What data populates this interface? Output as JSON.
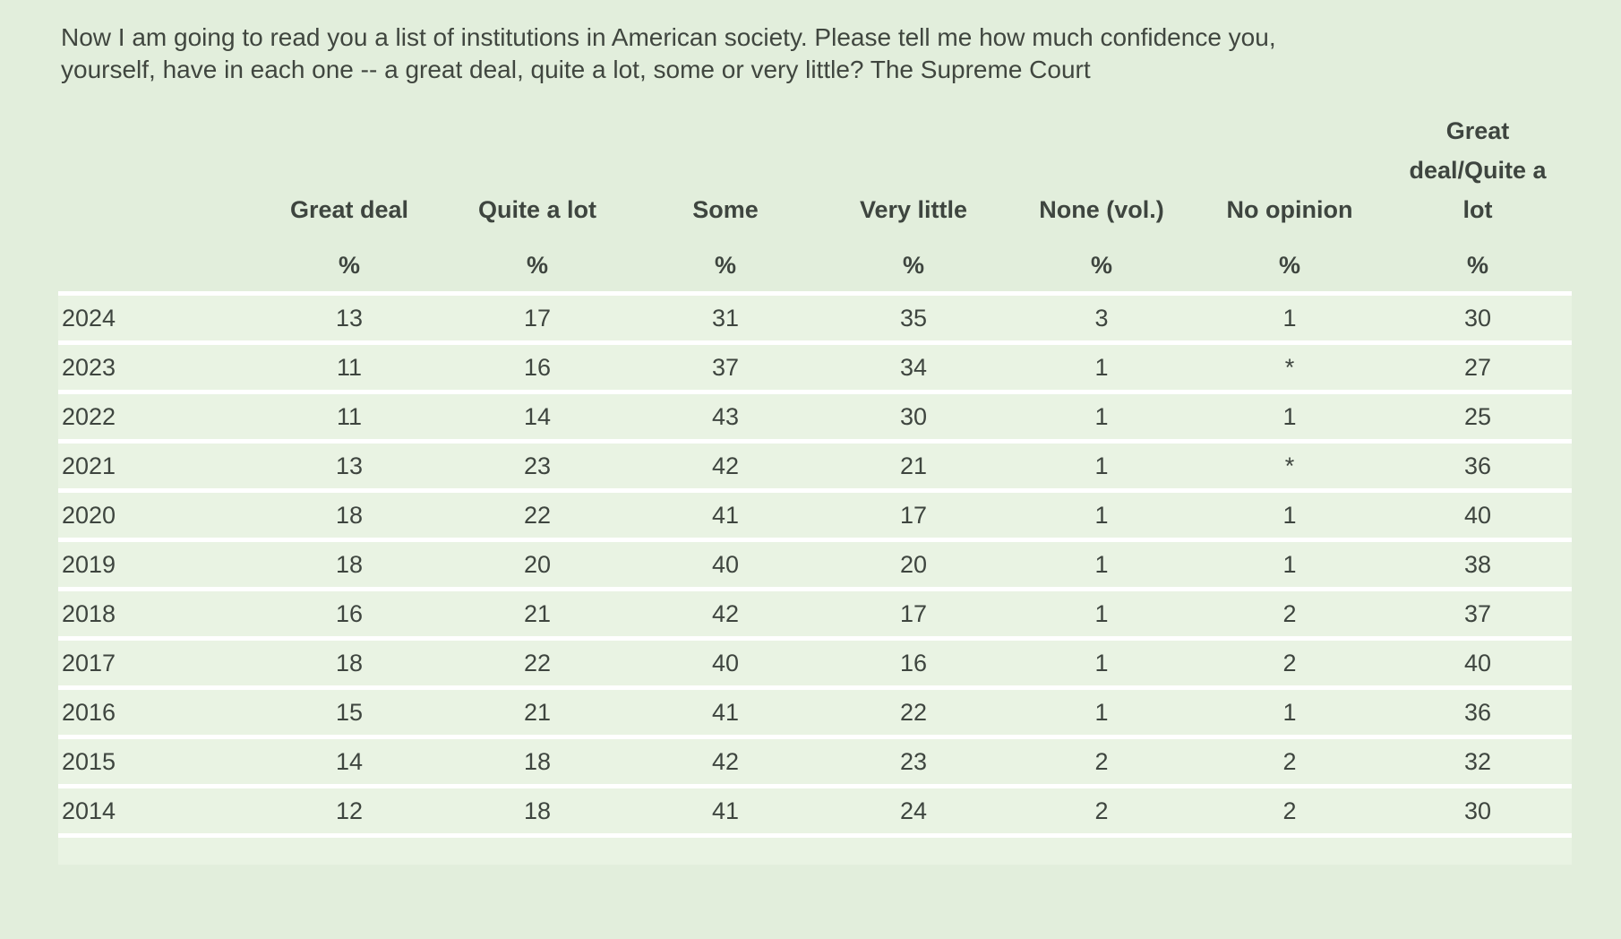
{
  "question": "Now I am going to read you a list of institutions in American society. Please tell me how much confidence you, yourself, have in each one -- a great deal, quite a lot, some or very little? The Supreme Court",
  "table": {
    "columns": [
      "Great deal",
      "Quite a lot",
      "Some",
      "Very little",
      "None (vol.)",
      "No opinion",
      "Great deal/Quite a lot"
    ],
    "unit": "%",
    "rows": [
      {
        "year": "2024",
        "values": [
          "13",
          "17",
          "31",
          "35",
          "3",
          "1",
          "30"
        ]
      },
      {
        "year": "2023",
        "values": [
          "11",
          "16",
          "37",
          "34",
          "1",
          "*",
          "27"
        ]
      },
      {
        "year": "2022",
        "values": [
          "11",
          "14",
          "43",
          "30",
          "1",
          "1",
          "25"
        ]
      },
      {
        "year": "2021",
        "values": [
          "13",
          "23",
          "42",
          "21",
          "1",
          "*",
          "36"
        ]
      },
      {
        "year": "2020",
        "values": [
          "18",
          "22",
          "41",
          "17",
          "1",
          "1",
          "40"
        ]
      },
      {
        "year": "2019",
        "values": [
          "18",
          "20",
          "40",
          "20",
          "1",
          "1",
          "38"
        ]
      },
      {
        "year": "2018",
        "values": [
          "16",
          "21",
          "42",
          "17",
          "1",
          "2",
          "37"
        ]
      },
      {
        "year": "2017",
        "values": [
          "18",
          "22",
          "40",
          "16",
          "1",
          "2",
          "40"
        ]
      },
      {
        "year": "2016",
        "values": [
          "15",
          "21",
          "41",
          "22",
          "1",
          "1",
          "36"
        ]
      },
      {
        "year": "2015",
        "values": [
          "14",
          "18",
          "42",
          "23",
          "2",
          "2",
          "32"
        ]
      },
      {
        "year": "2014",
        "values": [
          "12",
          "18",
          "41",
          "24",
          "2",
          "2",
          "30"
        ]
      }
    ]
  },
  "chart_data": {
    "type": "table",
    "title": "Now I am going to read you a list of institutions in American society. Please tell me how much confidence you, yourself, have in each one -- a great deal, quite a lot, some or very little? The Supreme Court",
    "unit": "%",
    "categories": [
      "2024",
      "2023",
      "2022",
      "2021",
      "2020",
      "2019",
      "2018",
      "2017",
      "2016",
      "2015",
      "2014"
    ],
    "series": [
      {
        "name": "Great deal",
        "values": [
          13,
          11,
          11,
          13,
          18,
          18,
          16,
          18,
          15,
          14,
          12
        ]
      },
      {
        "name": "Quite a lot",
        "values": [
          17,
          16,
          14,
          23,
          22,
          20,
          21,
          22,
          21,
          18,
          18
        ]
      },
      {
        "name": "Some",
        "values": [
          31,
          37,
          43,
          42,
          41,
          40,
          42,
          40,
          41,
          42,
          41
        ]
      },
      {
        "name": "Very little",
        "values": [
          35,
          34,
          30,
          21,
          17,
          20,
          17,
          16,
          22,
          23,
          24
        ]
      },
      {
        "name": "None (vol.)",
        "values": [
          3,
          1,
          1,
          1,
          1,
          1,
          1,
          1,
          1,
          2,
          2
        ]
      },
      {
        "name": "No opinion",
        "values": [
          1,
          "*",
          1,
          "*",
          1,
          1,
          2,
          2,
          1,
          2,
          2
        ]
      },
      {
        "name": "Great deal/Quite a lot",
        "values": [
          30,
          27,
          25,
          36,
          40,
          38,
          37,
          40,
          36,
          32,
          30
        ]
      }
    ]
  },
  "colors": {
    "page_background": "#e2eedc",
    "row_background": "#e9f3e3",
    "separator": "#ffffff",
    "text": "#3e453f"
  }
}
